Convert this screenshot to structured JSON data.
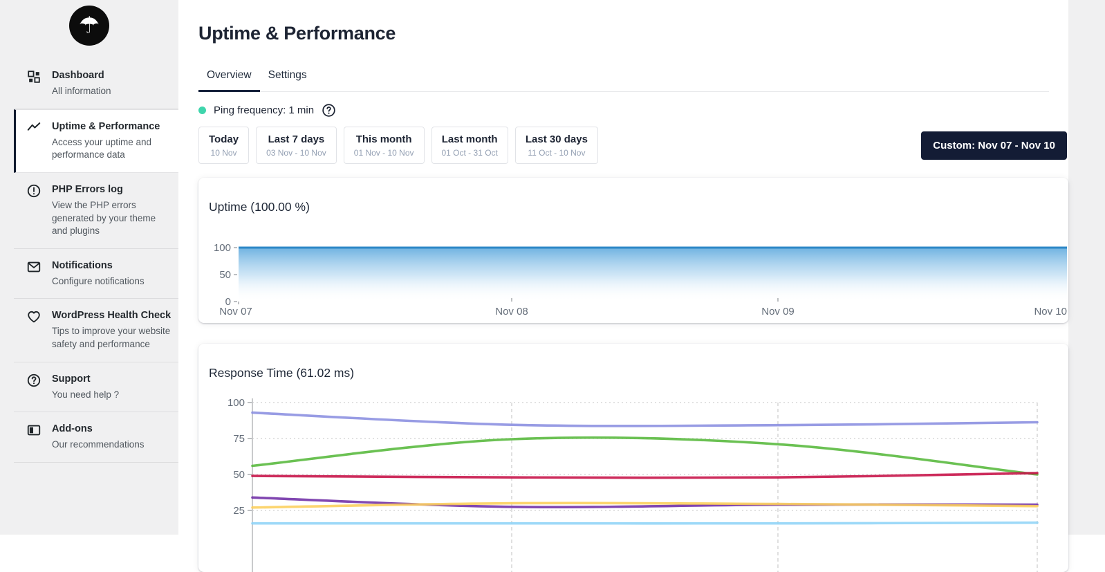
{
  "colors": {
    "sidebar_bg": "#f0f0f1",
    "content_bg": "#ffffff",
    "accent_dark": "#131c35",
    "ping_dot": "#3fd5ac",
    "tab_underline": "#16223c",
    "uptime_line": "#2d87c7",
    "uptime_fill_top": "#62abde"
  },
  "sidebar": {
    "logo_glyph": "☂",
    "items": [
      {
        "label": "Dashboard",
        "description": "All information",
        "icon": "dashboard-grid-icon",
        "active": false
      },
      {
        "label": "Uptime & Performance",
        "description": "Access your uptime and performance data",
        "icon": "trend-line-icon",
        "active": true
      },
      {
        "label": "PHP Errors log",
        "description": "View the PHP errors generated by your theme and plugins",
        "icon": "alert-circle-icon",
        "active": false
      },
      {
        "label": "Notifications",
        "description": "Configure notifications",
        "icon": "envelope-icon",
        "active": false
      },
      {
        "label": "WordPress Health Check",
        "description": "Tips to improve your website safety and performance",
        "icon": "heart-icon",
        "active": false
      },
      {
        "label": "Support",
        "description": "You need help ?",
        "icon": "question-circle-icon",
        "active": false
      },
      {
        "label": "Add-ons",
        "description": "Our recommendations",
        "icon": "addons-panel-icon",
        "active": false
      }
    ]
  },
  "header": {
    "title": "Uptime & Performance",
    "tabs": [
      {
        "label": "Overview",
        "active": true
      },
      {
        "label": "Settings",
        "active": false
      }
    ],
    "ping_label": "Ping frequency: 1 min"
  },
  "date_filters": {
    "presets": [
      {
        "label": "Today",
        "range": "10 Nov"
      },
      {
        "label": "Last 7 days",
        "range": "03 Nov - 10 Nov"
      },
      {
        "label": "This month",
        "range": "01 Nov - 10 Nov"
      },
      {
        "label": "Last month",
        "range": "01 Oct - 31 Oct"
      },
      {
        "label": "Last 30 days",
        "range": "11 Oct - 10 Nov"
      }
    ],
    "custom_label": "Custom: Nov 07 - Nov 10"
  },
  "chart_data": [
    {
      "type": "area",
      "title": "Uptime (100.00 %)",
      "x": [
        "Nov 07",
        "Nov 08",
        "Nov 09",
        "Nov 10"
      ],
      "series": [
        {
          "name": "uptime-percent",
          "color": "#2d87c7",
          "values": [
            100,
            100,
            100,
            100
          ]
        }
      ],
      "ylim": [
        0,
        100
      ],
      "yticks": [
        0,
        50,
        100
      ],
      "grid": false,
      "legend": "none"
    },
    {
      "type": "line",
      "title": "Response Time (61.02 ms)",
      "x": [
        "Nov 07",
        "Nov 08",
        "Nov 09",
        "Nov 10"
      ],
      "yticks": [
        25,
        50,
        75,
        100
      ],
      "ylim": [
        0,
        100
      ],
      "grid": "dotted-horizontal-and-dashed-vertical",
      "legend": "none",
      "series": [
        {
          "name": "series-violet",
          "color": "#8a8ee0",
          "values": [
            93,
            84.5,
            84.3,
            86.3
          ]
        },
        {
          "name": "series-green",
          "color": "#57b83b",
          "values": [
            56,
            74.5,
            71,
            50
          ]
        },
        {
          "name": "series-crimson",
          "color": "#c60f45",
          "values": [
            49,
            48,
            48,
            51
          ]
        },
        {
          "name": "series-purple",
          "color": "#6f2da6",
          "values": [
            34,
            27.5,
            29,
            29
          ]
        },
        {
          "name": "series-amber",
          "color": "#fccf5b",
          "values": [
            27,
            30,
            29.5,
            28
          ]
        },
        {
          "name": "series-sky",
          "color": "#8fd4f7",
          "values": [
            16,
            16,
            16,
            16.5
          ]
        }
      ]
    }
  ]
}
